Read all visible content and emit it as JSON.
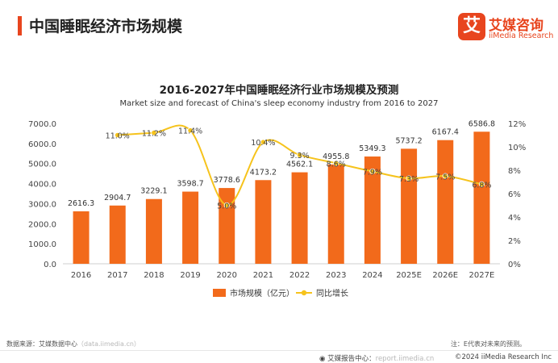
{
  "page": {
    "title": "中国睡眠经济市场规模",
    "brand_cn": "艾媒咨询",
    "brand_en": "iiMedia Research",
    "brand_mark": "艾"
  },
  "chart_data": {
    "type": "bar",
    "title": "2016-2027年中国睡眠经济行业市场规模及预测",
    "subtitle": "Market size and forecast of China's sleep economy industry from 2016 to 2027",
    "categories": [
      "2016",
      "2017",
      "2018",
      "2019",
      "2020",
      "2021",
      "2022",
      "2023",
      "2024",
      "2025E",
      "2026E",
      "2027E"
    ],
    "series": [
      {
        "name": "市场规模（亿元）",
        "type": "bar",
        "axis": "left",
        "color": "#f26a1b",
        "values": [
          2616.3,
          2904.7,
          3229.1,
          3598.7,
          3778.6,
          4173.2,
          4562.1,
          4955.8,
          5349.3,
          5737.2,
          6167.4,
          6586.8
        ],
        "labels": [
          "2616.3",
          "2904.7",
          "3229.1",
          "3598.7",
          "3778.6",
          "4173.2",
          "4562.1",
          "4955.8",
          "5349.3",
          "5737.2",
          "6167.4",
          "6586.8"
        ]
      },
      {
        "name": "同比增长",
        "type": "line",
        "axis": "right",
        "color": "#f6c31c",
        "values": [
          null,
          11.0,
          11.2,
          11.4,
          5.0,
          10.4,
          9.3,
          8.6,
          7.9,
          7.3,
          7.5,
          6.8
        ],
        "labels": [
          null,
          "11.0%",
          "11.2%",
          "11.4%",
          "5.0%",
          "10.4%",
          "9.3%",
          "8.6%",
          "7.9%",
          "7.3%",
          "7.5%",
          "6.8%"
        ]
      }
    ],
    "y_left": {
      "ylim": [
        0,
        7000
      ],
      "ticks": [
        "0.0",
        "1000.0",
        "2000.0",
        "3000.0",
        "4000.0",
        "5000.0",
        "6000.0",
        "7000.0"
      ]
    },
    "y_right": {
      "ylim": [
        0,
        12
      ],
      "ticks": [
        "0%",
        "2%",
        "4%",
        "6%",
        "8%",
        "10%",
        "12%"
      ]
    },
    "grid": false,
    "legend_position": "bottom"
  },
  "footer": {
    "source_label": "数据来源：艾媒数据中心",
    "source_url": "（data.iimedia.cn）",
    "note": "注：E代表对未来的预测。",
    "report_label": "艾媒报告中心：",
    "report_url": "report.iimedia.cn",
    "copyright": "©2024  iiMedia Research Inc"
  }
}
